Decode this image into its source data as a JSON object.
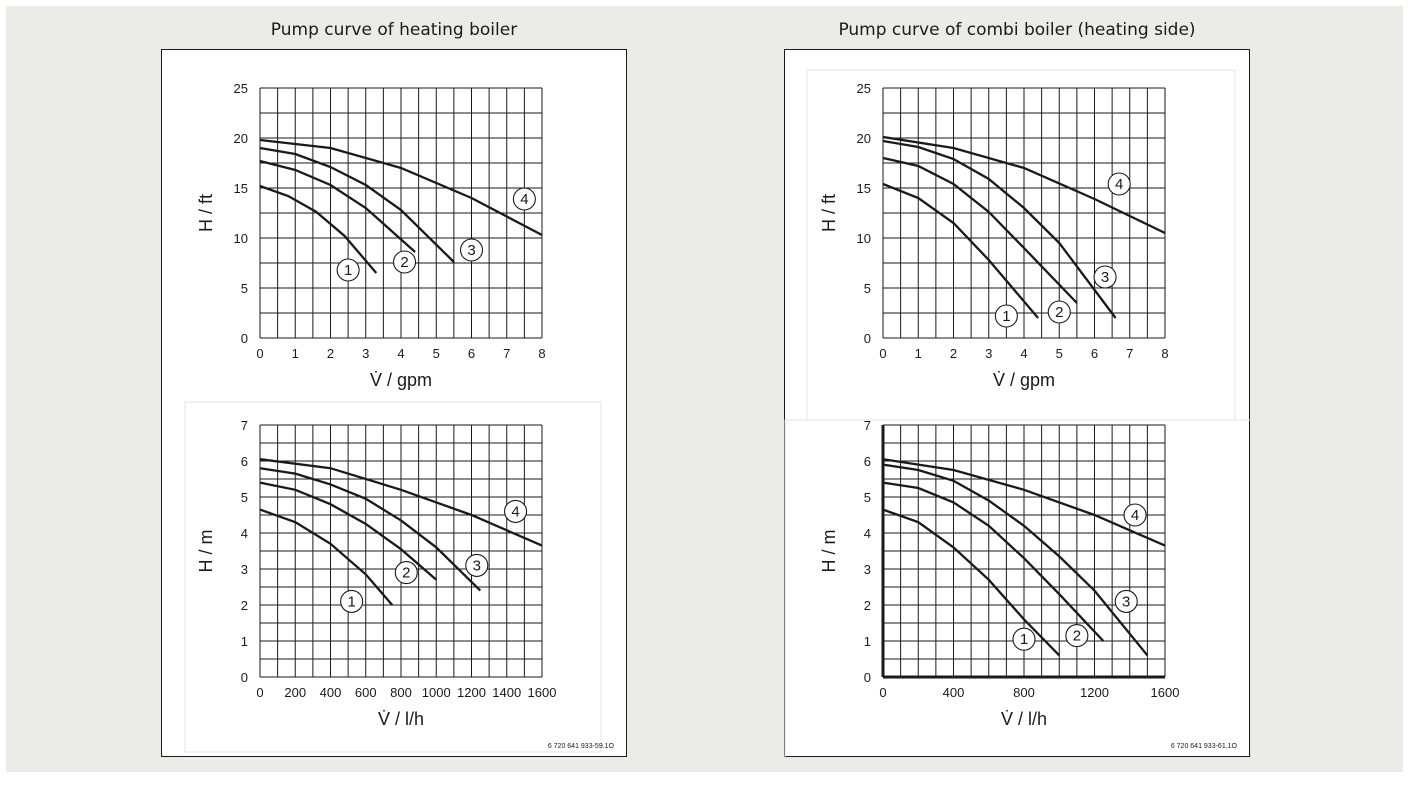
{
  "panels": [
    {
      "title": "Pump curve of heating boiler",
      "code": "6 720 641 933-59.1O",
      "charts": [
        {
          "type": "line",
          "xlabel": "V̇ / gpm",
          "ylabel": "H / ft",
          "xlim": [
            0,
            8
          ],
          "ylim": [
            0,
            25
          ],
          "xticks": [
            0,
            1,
            2,
            3,
            4,
            5,
            6,
            7,
            8
          ],
          "yticks": [
            0,
            5,
            10,
            15,
            20,
            25
          ],
          "grid": {
            "x_step": 0.5,
            "y_step": 2.5
          },
          "series": [
            {
              "label": "1",
              "x": [
                0,
                0.8,
                1.6,
                2.4,
                3.3
              ],
              "y": [
                15.2,
                14.2,
                12.6,
                10.2,
                6.5
              ],
              "marker": [
                2.5,
                6.8
              ]
            },
            {
              "label": "2",
              "x": [
                0,
                1,
                2,
                3,
                4.4
              ],
              "y": [
                17.7,
                16.8,
                15.3,
                13.0,
                8.6
              ],
              "marker": [
                4.1,
                7.6
              ]
            },
            {
              "label": "3",
              "x": [
                0,
                1,
                2,
                3,
                4,
                5.5
              ],
              "y": [
                19.0,
                18.4,
                17.1,
                15.3,
                12.8,
                7.6
              ],
              "marker": [
                6.0,
                8.8
              ]
            },
            {
              "label": "4",
              "x": [
                0,
                2,
                4,
                6,
                8
              ],
              "y": [
                19.8,
                19.0,
                17.0,
                14.0,
                10.3
              ],
              "marker": [
                7.5,
                13.9
              ]
            }
          ]
        },
        {
          "type": "line",
          "xlabel": "V̇ / l/h",
          "ylabel": "H / m",
          "xlim": [
            0,
            1600
          ],
          "ylim": [
            0,
            7
          ],
          "xticks": [
            0,
            200,
            400,
            600,
            800,
            1000,
            1200,
            1400,
            1600
          ],
          "yticks": [
            0,
            1,
            2,
            3,
            4,
            5,
            6,
            7
          ],
          "grid": {
            "x_step": 100,
            "y_step": 0.5
          },
          "series": [
            {
              "label": "1",
              "x": [
                0,
                200,
                400,
                600,
                750
              ],
              "y": [
                4.65,
                4.3,
                3.7,
                2.85,
                2.0
              ],
              "marker": [
                520,
                2.1
              ]
            },
            {
              "label": "2",
              "x": [
                0,
                200,
                400,
                600,
                800,
                1000
              ],
              "y": [
                5.4,
                5.2,
                4.8,
                4.25,
                3.55,
                2.7
              ],
              "marker": [
                830,
                2.9
              ]
            },
            {
              "label": "3",
              "x": [
                0,
                200,
                400,
                600,
                800,
                1000,
                1250
              ],
              "y": [
                5.8,
                5.65,
                5.35,
                4.95,
                4.35,
                3.6,
                2.4
              ],
              "marker": [
                1230,
                3.1
              ]
            },
            {
              "label": "4",
              "x": [
                0,
                400,
                800,
                1200,
                1600
              ],
              "y": [
                6.05,
                5.8,
                5.2,
                4.5,
                3.65
              ],
              "marker": [
                1450,
                4.6
              ]
            }
          ]
        }
      ]
    },
    {
      "title": "Pump curve of combi boiler (heating side)",
      "code": "6 720 641 933-61.1O",
      "charts": [
        {
          "type": "line",
          "xlabel": "V̇ / gpm",
          "ylabel": "H / ft",
          "xlim": [
            0,
            8
          ],
          "ylim": [
            0,
            25
          ],
          "xticks": [
            0,
            1,
            2,
            3,
            4,
            5,
            6,
            7,
            8
          ],
          "yticks": [
            0,
            5,
            10,
            15,
            20,
            25
          ],
          "grid": {
            "x_step": 0.5,
            "y_step": 2.5
          },
          "series": [
            {
              "label": "1",
              "x": [
                0,
                1,
                2,
                3,
                4.4
              ],
              "y": [
                15.4,
                14.0,
                11.5,
                7.8,
                2.0
              ],
              "marker": [
                3.5,
                2.2
              ]
            },
            {
              "label": "2",
              "x": [
                0,
                1,
                2,
                3,
                4,
                5.5
              ],
              "y": [
                18.0,
                17.2,
                15.4,
                12.6,
                9.0,
                3.5
              ],
              "marker": [
                5.0,
                2.6
              ]
            },
            {
              "label": "3",
              "x": [
                0,
                1,
                2,
                3,
                4,
                5,
                6.6
              ],
              "y": [
                19.7,
                19.1,
                17.9,
                15.9,
                13.0,
                9.5,
                2.0
              ],
              "marker": [
                6.3,
                6.1
              ]
            },
            {
              "label": "4",
              "x": [
                0,
                2,
                4,
                6,
                8
              ],
              "y": [
                20.1,
                19.0,
                17.0,
                13.9,
                10.5
              ],
              "marker": [
                6.7,
                15.4
              ]
            }
          ]
        },
        {
          "type": "line",
          "xlabel": "V̇ / l/h",
          "ylabel": "H / m",
          "xlim": [
            0,
            1600
          ],
          "ylim": [
            0,
            7
          ],
          "xticks": [
            0,
            400,
            800,
            1200,
            1600
          ],
          "yticks": [
            0,
            1,
            2,
            3,
            4,
            5,
            6,
            7
          ],
          "grid": {
            "x_step": 100,
            "y_step": 0.5
          },
          "series": [
            {
              "label": "1",
              "x": [
                0,
                200,
                400,
                600,
                800,
                1000
              ],
              "y": [
                4.65,
                4.3,
                3.6,
                2.7,
                1.6,
                0.6
              ],
              "marker": [
                800,
                1.05
              ]
            },
            {
              "label": "2",
              "x": [
                0,
                200,
                400,
                600,
                800,
                1000,
                1250
              ],
              "y": [
                5.4,
                5.25,
                4.85,
                4.2,
                3.3,
                2.3,
                1.0
              ],
              "marker": [
                1100,
                1.15
              ]
            },
            {
              "label": "3",
              "x": [
                0,
                200,
                400,
                600,
                800,
                1000,
                1200,
                1500
              ],
              "y": [
                5.9,
                5.75,
                5.45,
                4.9,
                4.2,
                3.35,
                2.4,
                0.6
              ],
              "marker": [
                1380,
                2.1
              ]
            },
            {
              "label": "4",
              "x": [
                0,
                400,
                800,
                1200,
                1600
              ],
              "y": [
                6.05,
                5.75,
                5.2,
                4.5,
                3.65
              ],
              "marker": [
                1430,
                4.5
              ]
            }
          ]
        }
      ]
    }
  ]
}
